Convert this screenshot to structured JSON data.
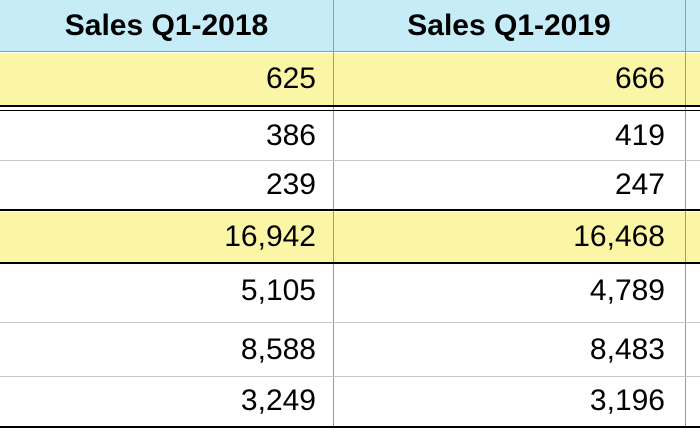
{
  "table": {
    "headers": [
      "Sales Q1-2018",
      "Sales Q1-2019"
    ],
    "rows": [
      {
        "q1_2018": "625",
        "q1_2019": "666",
        "highlighted": true
      },
      {
        "q1_2018": "386",
        "q1_2019": "419",
        "highlighted": false
      },
      {
        "q1_2018": "239",
        "q1_2019": "247",
        "highlighted": false
      },
      {
        "q1_2018": "16,942",
        "q1_2019": "16,468",
        "highlighted": true
      },
      {
        "q1_2018": "5,105",
        "q1_2019": "4,789",
        "highlighted": false
      },
      {
        "q1_2018": "8,588",
        "q1_2019": "8,483",
        "highlighted": false
      },
      {
        "q1_2018": "3,249",
        "q1_2019": "3,196",
        "highlighted": false
      }
    ],
    "colors": {
      "header_bg": "#c6ecf7",
      "highlight_bg": "#fbf6a6",
      "grid": "#9a9a9a",
      "border": "#000000"
    }
  }
}
